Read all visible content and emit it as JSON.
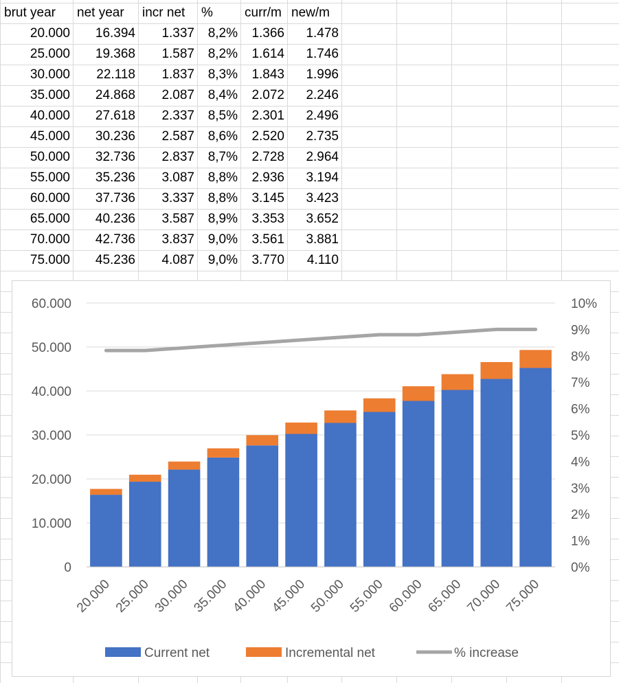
{
  "table": {
    "headers": [
      "brut year",
      "net year",
      "incr net",
      "%",
      "curr/m",
      "new/m"
    ],
    "rows": [
      [
        "20.000",
        "16.394",
        "1.337",
        "8,2%",
        "1.366",
        "1.478"
      ],
      [
        "25.000",
        "19.368",
        "1.587",
        "8,2%",
        "1.614",
        "1.746"
      ],
      [
        "30.000",
        "22.118",
        "1.837",
        "8,3%",
        "1.843",
        "1.996"
      ],
      [
        "35.000",
        "24.868",
        "2.087",
        "8,4%",
        "2.072",
        "2.246"
      ],
      [
        "40.000",
        "27.618",
        "2.337",
        "8,5%",
        "2.301",
        "2.496"
      ],
      [
        "45.000",
        "30.236",
        "2.587",
        "8,6%",
        "2.520",
        "2.735"
      ],
      [
        "50.000",
        "32.736",
        "2.837",
        "8,7%",
        "2.728",
        "2.964"
      ],
      [
        "55.000",
        "35.236",
        "3.087",
        "8,8%",
        "2.936",
        "3.194"
      ],
      [
        "60.000",
        "37.736",
        "3.337",
        "8,8%",
        "3.145",
        "3.423"
      ],
      [
        "65.000",
        "40.236",
        "3.587",
        "8,9%",
        "3.353",
        "3.652"
      ],
      [
        "70.000",
        "42.736",
        "3.837",
        "9,0%",
        "3.561",
        "3.881"
      ],
      [
        "75.000",
        "45.236",
        "4.087",
        "9,0%",
        "3.770",
        "4.110"
      ]
    ]
  },
  "chart_data": {
    "type": "bar",
    "stacked": true,
    "title": "",
    "categories": [
      "20.000",
      "25.000",
      "30.000",
      "35.000",
      "40.000",
      "45.000",
      "50.000",
      "55.000",
      "60.000",
      "65.000",
      "70.000",
      "75.000"
    ],
    "series": [
      {
        "name": "Current net",
        "type": "bar",
        "axis": "left",
        "color": "#4472C4",
        "values": [
          16394,
          19368,
          22118,
          24868,
          27618,
          30236,
          32736,
          35236,
          37736,
          40236,
          42736,
          45236
        ]
      },
      {
        "name": "Incremental net",
        "type": "bar",
        "axis": "left",
        "color": "#ED7D31",
        "values": [
          1337,
          1587,
          1837,
          2087,
          2337,
          2587,
          2837,
          3087,
          3337,
          3587,
          3837,
          4087
        ]
      },
      {
        "name": "% increase",
        "type": "line",
        "axis": "right",
        "color": "#A5A5A5",
        "values": [
          8.2,
          8.2,
          8.3,
          8.4,
          8.5,
          8.6,
          8.7,
          8.8,
          8.8,
          8.9,
          9.0,
          9.0
        ]
      }
    ],
    "ylim": [
      0,
      60000
    ],
    "y_ticks": [
      "0",
      "10.000",
      "20.000",
      "30.000",
      "40.000",
      "50.000",
      "60.000"
    ],
    "y2lim": [
      0,
      10
    ],
    "y2_ticks": [
      "0%",
      "1%",
      "2%",
      "3%",
      "4%",
      "5%",
      "6%",
      "7%",
      "8%",
      "9%",
      "10%"
    ],
    "grid": true,
    "legend_position": "bottom"
  }
}
